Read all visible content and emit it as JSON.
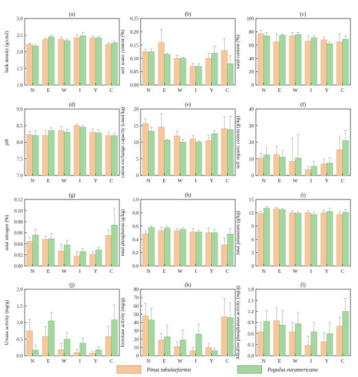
{
  "colors": {
    "pinus": "#f6c79b",
    "populus": "#a5d6a0",
    "pinus_edge": "#e0a070",
    "populus_edge": "#6fb46a",
    "error": "#999999"
  },
  "legend": {
    "series1": "Pinus tabulaeformis",
    "series2": "Populus euramericana",
    "placement": "bottom"
  },
  "chart_data": [
    {
      "type": "bar",
      "panel": "(a)",
      "categories": [
        "N",
        "E",
        "W",
        "I",
        "Y",
        "C"
      ],
      "ylabel": "bulk density (g/cm2)",
      "ylim": [
        1.0,
        3.0
      ],
      "yticks": [
        "1.0",
        "1.5",
        "2.0",
        "2.5",
        "3.0"
      ],
      "series": [
        {
          "name": "Pinus tabulaeformis",
          "values": [
            2.22,
            2.37,
            2.37,
            2.42,
            2.42,
            2.22
          ],
          "errors": [
            0.03,
            0.04,
            0.06,
            0.1,
            0.05,
            0.05
          ]
        },
        {
          "name": "Populus euramericana",
          "values": [
            2.17,
            2.45,
            2.33,
            2.48,
            2.42,
            2.27
          ],
          "errors": [
            0.04,
            0.05,
            0.05,
            0.1,
            0.04,
            0.05
          ]
        }
      ]
    },
    {
      "type": "bar",
      "panel": "(b)",
      "categories": [
        "N",
        "E",
        "W",
        "I",
        "Y",
        "C"
      ],
      "ylabel": "soil water content (%)",
      "ylim": [
        0,
        0.25
      ],
      "yticks": [
        "0.00",
        "0.05",
        "0.10",
        "0.15",
        "0.20",
        "0.25"
      ],
      "series": [
        {
          "name": "Pinus tabulaeformis",
          "values": [
            0.125,
            0.16,
            0.1,
            0.07,
            0.1,
            0.13
          ],
          "errors": [
            0.01,
            0.05,
            0.012,
            0.012,
            0.02,
            0.045
          ]
        },
        {
          "name": "Populus euramericana",
          "values": [
            0.125,
            0.115,
            0.1,
            0.07,
            0.12,
            0.08
          ],
          "errors": [
            0.01,
            0.005,
            0.005,
            0.01,
            0.025,
            0.03
          ]
        }
      ]
    },
    {
      "type": "bar",
      "panel": "(c)",
      "categories": [
        "N",
        "E",
        "W",
        "I",
        "Y",
        "C"
      ],
      "ylabel": "sand content (%)",
      "ylim": [
        0,
        100
      ],
      "yticks": [
        "0",
        "20",
        "40",
        "60",
        "80",
        "100"
      ],
      "series": [
        {
          "name": "Pinus tabulaeformis",
          "values": [
            77,
            65,
            74,
            66,
            68,
            65
          ],
          "errors": [
            5,
            12,
            5,
            8,
            4,
            12
          ]
        },
        {
          "name": "Populus euramericana",
          "values": [
            74,
            75,
            76,
            71,
            62,
            69
          ],
          "errors": [
            5,
            2,
            3,
            3,
            3,
            5
          ]
        }
      ]
    },
    {
      "type": "bar",
      "panel": "(d)",
      "categories": [
        "N",
        "E",
        "W",
        "I",
        "Y",
        "C"
      ],
      "ylabel": "pH",
      "ylim": [
        7.0,
        9.0
      ],
      "yticks": [
        "7.0",
        "7.5",
        "8.0",
        "8.5",
        "9.0"
      ],
      "series": [
        {
          "name": "Pinus tabulaeformis",
          "values": [
            8.23,
            8.2,
            8.35,
            8.5,
            8.3,
            8.2
          ],
          "errors": [
            0.1,
            0.15,
            0.12,
            0.05,
            0.1,
            0.1
          ]
        },
        {
          "name": "Populus euramericana",
          "values": [
            8.2,
            8.35,
            8.3,
            8.45,
            8.28,
            8.2
          ],
          "errors": [
            0.15,
            0.08,
            0.1,
            0.05,
            0.1,
            0.08
          ]
        }
      ]
    },
    {
      "type": "bar",
      "panel": "(e)",
      "categories": [
        "N",
        "E",
        "W",
        "I",
        "Y",
        "C"
      ],
      "ylabel": "cation exchange capacity (cmol/kg)",
      "ylim": [
        0,
        20
      ],
      "yticks": [
        "0",
        "5",
        "10",
        "15",
        "20"
      ],
      "series": [
        {
          "name": "Pinus tabulaeformis",
          "values": [
            15.6,
            14.6,
            11.9,
            11.0,
            10.5,
            14.1
          ],
          "errors": [
            1.5,
            4,
            1.5,
            1.0,
            1.5,
            3.5
          ]
        },
        {
          "name": "Populus euramericana",
          "values": [
            13.3,
            10.6,
            10.0,
            10.1,
            12.6,
            13.8
          ],
          "errors": [
            1.2,
            0.3,
            0.8,
            0.3,
            1.0,
            4
          ]
        }
      ]
    },
    {
      "type": "bar",
      "panel": "(f)",
      "categories": [
        "N",
        "E",
        "W",
        "I",
        "Y",
        "C"
      ],
      "ylabel": "soil organic content (g/kg)",
      "ylim": [
        0,
        40
      ],
      "yticks": [
        "0",
        "10",
        "20",
        "30",
        "40"
      ],
      "series": [
        {
          "name": "Pinus tabulaeformis",
          "values": [
            10.5,
            12.5,
            8.5,
            3.5,
            7,
            15.5
          ],
          "errors": [
            3,
            5,
            14,
            2,
            3,
            8
          ]
        },
        {
          "name": "Populus euramericana",
          "values": [
            12.5,
            11,
            10.5,
            5.5,
            7.5,
            21
          ],
          "errors": [
            4,
            4,
            14,
            3,
            3,
            6
          ]
        }
      ]
    },
    {
      "type": "bar",
      "panel": "(g)",
      "categories": [
        "N",
        "E",
        "W",
        "I",
        "Y",
        "C"
      ],
      "ylabel": "total nitrogen (%)",
      "ylim": [
        0,
        0.12
      ],
      "yticks": [
        "0.00",
        "0.02",
        "0.04",
        "0.06",
        "0.08",
        "0.10",
        "0.12"
      ],
      "series": [
        {
          "name": "Pinus tabulaeformis",
          "values": [
            0.044,
            0.048,
            0.027,
            0.018,
            0.021,
            0.055
          ],
          "errors": [
            0.008,
            0.006,
            0.012,
            0.008,
            0.005,
            0.01
          ]
        },
        {
          "name": "Populus euramericana",
          "values": [
            0.056,
            0.049,
            0.038,
            0.026,
            0.029,
            0.074
          ],
          "errors": [
            0.01,
            0.01,
            0.008,
            0.005,
            0.005,
            0.03
          ]
        }
      ]
    },
    {
      "type": "bar",
      "panel": "(h)",
      "categories": [
        "N",
        "E",
        "W",
        "I",
        "Y",
        "C"
      ],
      "ylabel": "total phosphorus (g/kg)",
      "ylim": [
        0,
        1.0
      ],
      "yticks": [
        "0.0",
        "0.2",
        "0.4",
        "0.6",
        "0.8",
        "1.0"
      ],
      "series": [
        {
          "name": "Pinus tabulaeformis",
          "values": [
            0.48,
            0.53,
            0.53,
            0.51,
            0.5,
            0.32
          ],
          "errors": [
            0.05,
            0.05,
            0.03,
            0.05,
            0.07,
            0.1
          ]
        },
        {
          "name": "Populus euramericana",
          "values": [
            0.58,
            0.57,
            0.55,
            0.51,
            0.5,
            0.48
          ],
          "errors": [
            0.03,
            0.02,
            0.02,
            0.03,
            0.05,
            0.08
          ]
        }
      ]
    },
    {
      "type": "bar",
      "panel": "(i)",
      "categories": [
        "N",
        "E",
        "W",
        "I",
        "Y",
        "C"
      ],
      "ylabel": "total potassium (g/kg)",
      "ylim": [
        0,
        15
      ],
      "yticks": [
        "0",
        "3",
        "6",
        "9",
        "12",
        "15"
      ],
      "series": [
        {
          "name": "Pinus tabulaeformis",
          "values": [
            11.8,
            12.9,
            12.0,
            12.0,
            12.0,
            11.6
          ],
          "errors": [
            0.5,
            0.3,
            0.4,
            0.5,
            0.6,
            0.6
          ]
        },
        {
          "name": "Populus euramericana",
          "values": [
            13.0,
            12.7,
            11.9,
            11.6,
            12.3,
            12.1
          ],
          "errors": [
            0.4,
            0.2,
            0.3,
            0.6,
            0.7,
            0.7
          ]
        }
      ]
    },
    {
      "type": "bar",
      "panel": "(j)",
      "categories": [
        "N",
        "E",
        "W",
        "I",
        "Y",
        "C"
      ],
      "ylabel": "Urease activity (mg/g)",
      "ylim": [
        0,
        2.0
      ],
      "yticks": [
        "0.0",
        "0.5",
        "1.0",
        "1.5",
        "2.0"
      ],
      "series": [
        {
          "name": "Pinus tabulaeformis",
          "values": [
            0.75,
            0.58,
            0.18,
            0.1,
            0.08,
            0.58
          ],
          "errors": [
            0.35,
            0.3,
            0.2,
            0.1,
            0.05,
            0.3
          ]
        },
        {
          "name": "Populus euramericana",
          "values": [
            0.17,
            1.05,
            0.5,
            0.38,
            0.18,
            1.08
          ],
          "errors": [
            0.15,
            0.25,
            0.2,
            0.15,
            0.1,
            0.45
          ]
        }
      ]
    },
    {
      "type": "bar",
      "panel": "(k)",
      "categories": [
        "N",
        "E",
        "W",
        "I",
        "Y",
        "C"
      ],
      "ylabel": "Invertase activity (mg/g)",
      "ylim": [
        0,
        80
      ],
      "yticks": [
        "0",
        "10",
        "20",
        "30",
        "40",
        "50",
        "60",
        "70",
        "80"
      ],
      "series": [
        {
          "name": "Pinus tabulaeformis",
          "values": [
            48,
            19,
            11,
            6,
            10,
            47
          ],
          "errors": [
            15,
            8,
            6,
            4,
            5,
            22
          ]
        },
        {
          "name": "Populus euramericana",
          "values": [
            43,
            23,
            19,
            26,
            6,
            46
          ],
          "errors": [
            14,
            14,
            12,
            12,
            3,
            18
          ]
        }
      ]
    },
    {
      "type": "bar",
      "panel": "(l)",
      "categories": [
        "N",
        "E",
        "W",
        "I",
        "Y",
        "C"
      ],
      "ylabel": "Alkaline phosphatase activity (mg/g)",
      "ylim": [
        0,
        1.8
      ],
      "yticks": [
        "0.0",
        "0.3",
        "0.6",
        "0.9",
        "1.2",
        "1.5",
        "1.8"
      ],
      "series": [
        {
          "name": "Pinus tabulaeformis",
          "values": [
            0.65,
            0.95,
            0.65,
            0.28,
            0.38,
            0.8
          ],
          "errors": [
            0.25,
            0.35,
            0.25,
            0.25,
            0.25,
            0.25
          ]
        },
        {
          "name": "Populus euramericana",
          "values": [
            0.93,
            0.83,
            0.87,
            0.65,
            0.6,
            1.2
          ],
          "errors": [
            0.3,
            0.4,
            0.3,
            0.25,
            0.3,
            0.35
          ]
        }
      ]
    }
  ]
}
